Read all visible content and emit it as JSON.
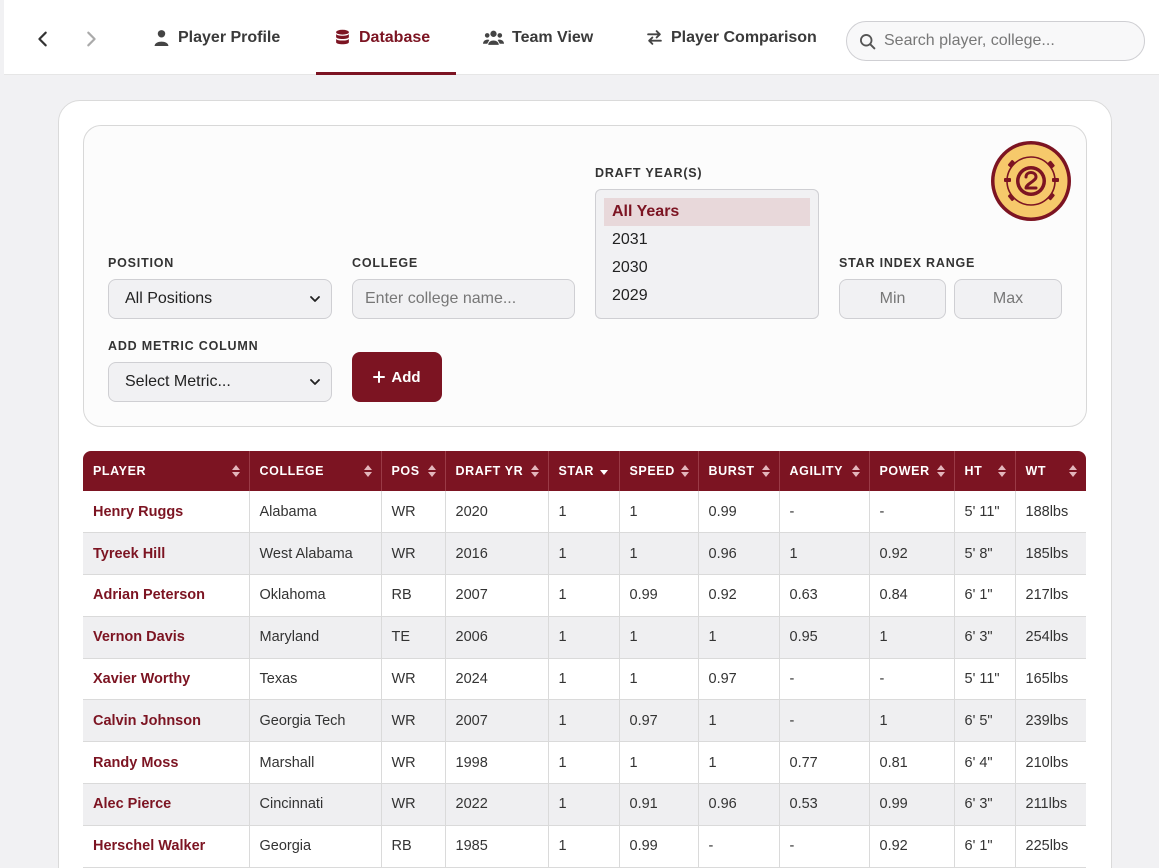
{
  "nav": {
    "tabs": [
      {
        "label": "Player Profile",
        "icon": "user-icon"
      },
      {
        "label": "Database",
        "icon": "database-icon",
        "active": true
      },
      {
        "label": "Team View",
        "icon": "users-icon"
      },
      {
        "label": "Player Comparison",
        "icon": "swap-icon"
      }
    ],
    "search_placeholder": "Search player, college..."
  },
  "filters": {
    "position_label": "POSITION",
    "position_value": "All Positions",
    "college_label": "COLLEGE",
    "college_placeholder": "Enter college name...",
    "draft_label": "DRAFT YEAR(S)",
    "draft_options": [
      "All Years",
      "2031",
      "2030",
      "2029"
    ],
    "draft_selected": "All Years",
    "star_label": "STAR INDEX RANGE",
    "star_min_placeholder": "Min",
    "star_max_placeholder": "Max",
    "metric_label": "ADD METRIC COLUMN",
    "metric_value": "Select Metric...",
    "add_label": "Add"
  },
  "colors": {
    "accent": "#7c1422",
    "logo_fill": "#f6c96b"
  },
  "table": {
    "columns": [
      "PLAYER",
      "COLLEGE",
      "POS",
      "DRAFT YR",
      "STAR",
      "SPEED",
      "BURST",
      "AGILITY",
      "POWER",
      "HT",
      "WT"
    ],
    "sorted_column": "STAR",
    "rows": [
      [
        "Henry Ruggs",
        "Alabama",
        "WR",
        "2020",
        "1",
        "1",
        "0.99",
        "-",
        "-",
        "5' 11\"",
        "188lbs"
      ],
      [
        "Tyreek Hill",
        "West Alabama",
        "WR",
        "2016",
        "1",
        "1",
        "0.96",
        "1",
        "0.92",
        "5' 8\"",
        "185lbs"
      ],
      [
        "Adrian Peterson",
        "Oklahoma",
        "RB",
        "2007",
        "1",
        "0.99",
        "0.92",
        "0.63",
        "0.84",
        "6' 1\"",
        "217lbs"
      ],
      [
        "Vernon Davis",
        "Maryland",
        "TE",
        "2006",
        "1",
        "1",
        "1",
        "0.95",
        "1",
        "6' 3\"",
        "254lbs"
      ],
      [
        "Xavier Worthy",
        "Texas",
        "WR",
        "2024",
        "1",
        "1",
        "0.97",
        "-",
        "-",
        "5' 11\"",
        "165lbs"
      ],
      [
        "Calvin Johnson",
        "Georgia Tech",
        "WR",
        "2007",
        "1",
        "0.97",
        "1",
        "-",
        "1",
        "6' 5\"",
        "239lbs"
      ],
      [
        "Randy Moss",
        "Marshall",
        "WR",
        "1998",
        "1",
        "1",
        "1",
        "0.77",
        "0.81",
        "6' 4\"",
        "210lbs"
      ],
      [
        "Alec Pierce",
        "Cincinnati",
        "WR",
        "2022",
        "1",
        "0.91",
        "0.96",
        "0.53",
        "0.99",
        "6' 3\"",
        "211lbs"
      ],
      [
        "Herschel Walker",
        "Georgia",
        "RB",
        "1985",
        "1",
        "0.99",
        "-",
        "-",
        "0.92",
        "6' 1\"",
        "225lbs"
      ]
    ]
  }
}
